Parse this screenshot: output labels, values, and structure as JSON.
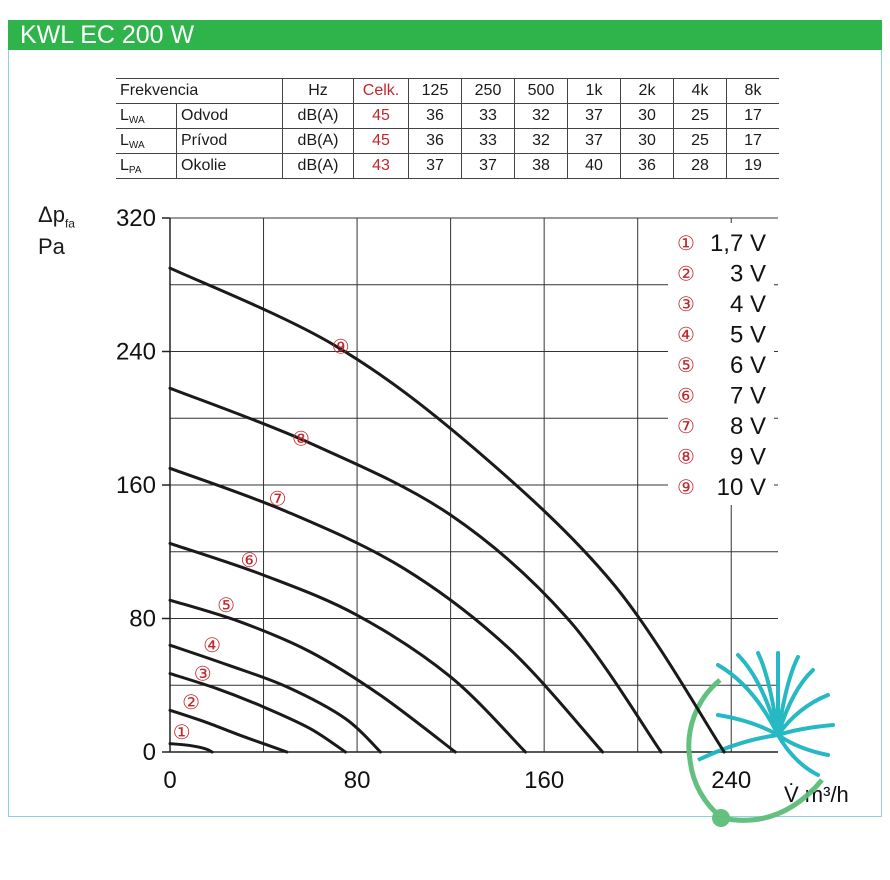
{
  "header": {
    "title": "KWL EC 200 W"
  },
  "noise_table": {
    "header": [
      "Frekvencia",
      "",
      "Hz",
      "Celk.",
      "125",
      "250",
      "500",
      "1k",
      "2k",
      "4k",
      "8k"
    ],
    "rows": [
      {
        "sym": "L",
        "sub": "WA",
        "name": "Odvod",
        "unit": "dB(A)",
        "total": "45",
        "values": [
          "36",
          "33",
          "32",
          "37",
          "30",
          "25",
          "17"
        ]
      },
      {
        "sym": "L",
        "sub": "WA",
        "name": "Prívod",
        "unit": "dB(A)",
        "total": "45",
        "values": [
          "36",
          "33",
          "32",
          "37",
          "30",
          "25",
          "17"
        ]
      },
      {
        "sym": "L",
        "sub": "PA",
        "name": "Okolie",
        "unit": "dB(A)",
        "total": "43",
        "values": [
          "37",
          "37",
          "38",
          "40",
          "36",
          "28",
          "19"
        ]
      }
    ]
  },
  "chart_data": {
    "type": "line",
    "ylabel_main": "Δp",
    "ylabel_sub": "fa",
    "ylabel_unit": "Pa",
    "xlabel": "V̇ m³/h",
    "xlim": [
      0,
      260
    ],
    "ylim": [
      0,
      320
    ],
    "xticks": [
      "0",
      "80",
      "160",
      "240"
    ],
    "xtick_values": [
      0,
      80,
      160,
      240
    ],
    "yticks": [
      "0",
      "80",
      "160",
      "240",
      "320"
    ],
    "ytick_values": [
      0,
      80,
      160,
      240,
      320
    ],
    "grid": true,
    "legend_position": "top-right",
    "series": [
      {
        "name": "1,7 V",
        "marker": "①",
        "label_at": [
          5,
          12
        ],
        "points": [
          [
            0,
            5
          ],
          [
            8,
            4
          ],
          [
            15,
            2
          ],
          [
            18,
            0
          ]
        ]
      },
      {
        "name": "3 V",
        "marker": "②",
        "label_at": [
          9,
          30
        ],
        "points": [
          [
            0,
            25
          ],
          [
            15,
            18
          ],
          [
            30,
            10
          ],
          [
            42,
            4
          ],
          [
            50,
            0
          ]
        ]
      },
      {
        "name": "4 V",
        "marker": "③",
        "label_at": [
          14,
          47
        ],
        "points": [
          [
            0,
            47
          ],
          [
            20,
            38
          ],
          [
            40,
            27
          ],
          [
            60,
            14
          ],
          [
            75,
            0
          ]
        ]
      },
      {
        "name": "5 V",
        "marker": "④",
        "label_at": [
          18,
          64
        ],
        "points": [
          [
            0,
            64
          ],
          [
            25,
            52
          ],
          [
            50,
            39
          ],
          [
            75,
            20
          ],
          [
            90,
            0
          ]
        ]
      },
      {
        "name": "6 V",
        "marker": "⑤",
        "label_at": [
          24,
          88
        ],
        "points": [
          [
            0,
            91
          ],
          [
            30,
            78
          ],
          [
            60,
            60
          ],
          [
            90,
            34
          ],
          [
            122,
            0
          ]
        ]
      },
      {
        "name": "7 V",
        "marker": "⑥",
        "label_at": [
          34,
          115
        ],
        "points": [
          [
            0,
            125
          ],
          [
            40,
            106
          ],
          [
            80,
            82
          ],
          [
            120,
            45
          ],
          [
            152,
            0
          ]
        ]
      },
      {
        "name": "8 V",
        "marker": "⑦",
        "label_at": [
          46,
          152
        ],
        "points": [
          [
            0,
            170
          ],
          [
            50,
            144
          ],
          [
            100,
            110
          ],
          [
            145,
            62
          ],
          [
            185,
            0
          ]
        ]
      },
      {
        "name": "9 V",
        "marker": "⑧",
        "label_at": [
          56,
          188
        ],
        "points": [
          [
            0,
            218
          ],
          [
            60,
            185
          ],
          [
            120,
            142
          ],
          [
            170,
            80
          ],
          [
            210,
            0
          ]
        ]
      },
      {
        "name": "10 V",
        "marker": "⑨",
        "label_at": [
          73,
          243
        ],
        "points": [
          [
            0,
            290
          ],
          [
            70,
            244
          ],
          [
            130,
            182
          ],
          [
            190,
            100
          ],
          [
            237,
            0
          ]
        ]
      }
    ]
  }
}
